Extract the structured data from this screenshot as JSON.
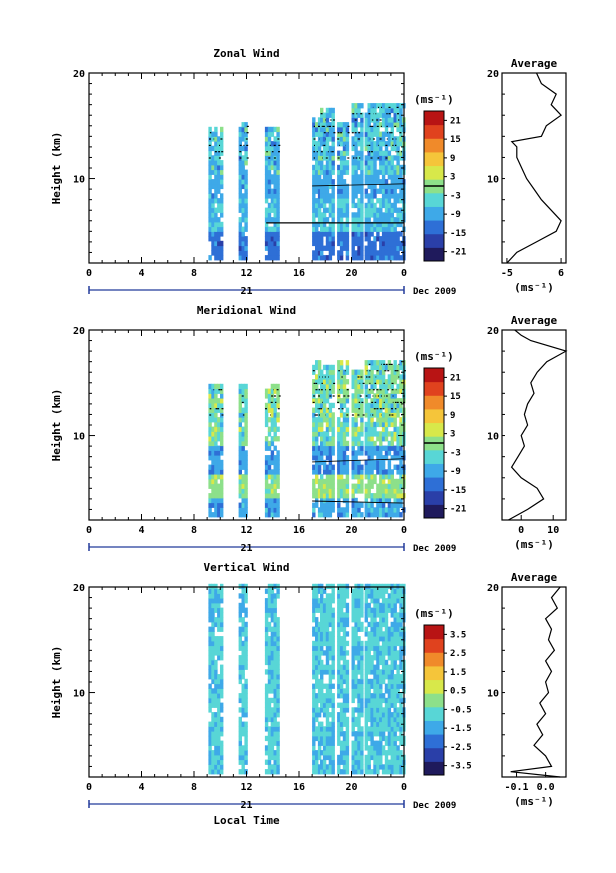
{
  "chart_data": [
    {
      "type": "heatmap",
      "title": "Zonal Wind",
      "ylabel": "Height (km)",
      "ylim": [
        2,
        20
      ],
      "yticks": [
        "10",
        "20"
      ],
      "xticks": [
        "0",
        "4",
        "8",
        "12",
        "16",
        "20",
        "0"
      ],
      "xlim": [
        0,
        24
      ],
      "date_marker": "21",
      "date_label": "Dec 2009",
      "colorbar": {
        "unit": "(ms⁻¹)",
        "ticks": [
          "21",
          "15",
          "9",
          "3",
          "-3",
          "-9",
          "-15",
          "-21"
        ],
        "range": [
          -24,
          24
        ]
      },
      "profile": {
        "title": "Average",
        "xlabel": "(ms⁻¹)",
        "xticks": [
          "-5",
          "6"
        ],
        "xlim": [
          -6,
          7
        ],
        "yticks": [
          "10",
          "20"
        ],
        "height_km": [
          2,
          3,
          4,
          5,
          6,
          7,
          8,
          9,
          10,
          11,
          12,
          13,
          13.5,
          14,
          15,
          16,
          17,
          18,
          19,
          20
        ],
        "wind": [
          -5,
          -3,
          1,
          5,
          6,
          4,
          2,
          0.5,
          -1,
          -2,
          -3,
          -3,
          -4,
          2,
          3,
          6,
          4,
          5,
          2,
          1
        ]
      }
    },
    {
      "type": "heatmap",
      "title": "Meridional Wind",
      "ylabel": "Height (km)",
      "ylim": [
        2,
        20
      ],
      "yticks": [
        "10",
        "20"
      ],
      "xticks": [
        "0",
        "4",
        "8",
        "12",
        "16",
        "20",
        "0"
      ],
      "xlim": [
        0,
        24
      ],
      "date_marker": "21",
      "date_label": "Dec 2009",
      "colorbar": {
        "unit": "(ms⁻¹)",
        "ticks": [
          "21",
          "15",
          "9",
          "3",
          "-3",
          "-9",
          "-15",
          "-21"
        ],
        "range": [
          -24,
          24
        ]
      },
      "profile": {
        "title": "Average",
        "xlabel": "(ms⁻¹)",
        "xticks": [
          "0",
          "10"
        ],
        "xlim": [
          -6,
          14
        ],
        "yticks": [
          "10",
          "20"
        ],
        "height_km": [
          2,
          3,
          4,
          5,
          6,
          7,
          8,
          9,
          10,
          11,
          12,
          13,
          14,
          15,
          16,
          17,
          18,
          19,
          19.5,
          20
        ],
        "wind": [
          -4,
          2,
          7,
          5,
          0,
          -3,
          -1,
          1,
          0,
          2,
          1,
          2,
          4,
          3,
          5,
          8,
          14,
          3,
          0,
          -2
        ]
      }
    },
    {
      "type": "heatmap",
      "title": "Vertical Wind",
      "ylabel": "Height (km)",
      "ylim": [
        2,
        20
      ],
      "yticks": [
        "10",
        "20"
      ],
      "xticks": [
        "0",
        "4",
        "8",
        "12",
        "16",
        "20",
        "0"
      ],
      "xlim": [
        0,
        24
      ],
      "xlabel": "Local Time",
      "date_marker": "21",
      "date_label": "Dec 2009",
      "colorbar": {
        "unit": "(ms⁻¹)",
        "ticks": [
          "3.5",
          "2.5",
          "1.5",
          "0.5",
          "-0.5",
          "-1.5",
          "-2.5",
          "-3.5"
        ],
        "range": [
          -4,
          4
        ]
      },
      "profile": {
        "title": "Average",
        "xlabel": "(ms⁻¹)",
        "xticks": [
          "-0.1",
          "0.0"
        ],
        "xlim": [
          -0.15,
          0.07
        ],
        "yticks": [
          "10",
          "20"
        ],
        "height_km": [
          2,
          2.5,
          3,
          4,
          5,
          6,
          7,
          8,
          9,
          10,
          11,
          12,
          13,
          14,
          15,
          16,
          17,
          18,
          19,
          20
        ],
        "wind": [
          0.05,
          -0.12,
          0.02,
          0.0,
          -0.04,
          -0.01,
          -0.03,
          0.0,
          -0.02,
          0.01,
          0.0,
          0.02,
          0.0,
          0.03,
          0.01,
          0.02,
          0.0,
          0.04,
          0.02,
          0.05
        ]
      }
    }
  ],
  "palette": [
    "#1f1a5c",
    "#2a3fa8",
    "#2e6fd6",
    "#3ea9e8",
    "#58d6d6",
    "#8de08a",
    "#d8e84a",
    "#f5c53a",
    "#f08a2a",
    "#e0421e",
    "#b81414"
  ]
}
